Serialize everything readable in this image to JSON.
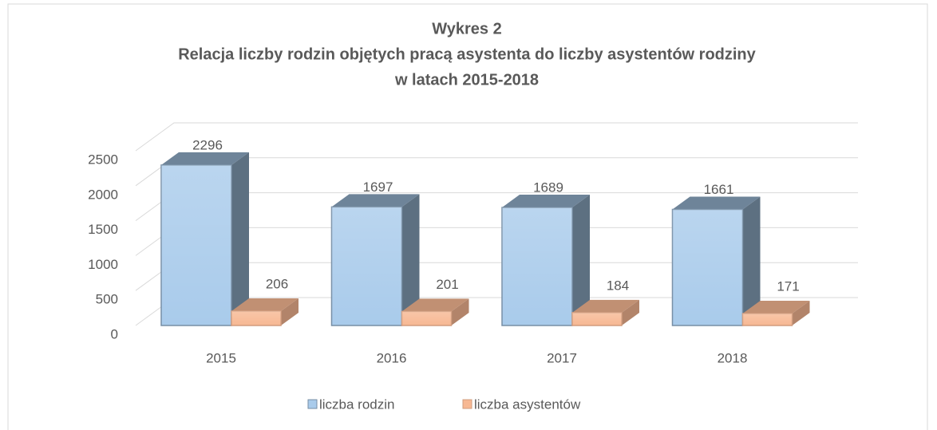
{
  "chart_data": {
    "type": "bar3d",
    "title": [
      "Wykres 2",
      "Relacja liczby rodzin objętych pracą asystenta do liczby asystentów rodziny",
      "w latach 2015-2018"
    ],
    "categories": [
      "2015",
      "2016",
      "2017",
      "2018"
    ],
    "series": [
      {
        "name": "liczba rodzin",
        "color": "#a9cbeb",
        "values": [
          2296,
          1697,
          1689,
          1661
        ]
      },
      {
        "name": "liczba asystentów",
        "color": "#f7b893",
        "values": [
          206,
          201,
          184,
          171
        ]
      }
    ],
    "ylim": [
      0,
      2500
    ],
    "yticks": [
      0,
      500,
      1000,
      1500,
      2000,
      2500
    ],
    "grid": true,
    "legend": "bottom"
  }
}
